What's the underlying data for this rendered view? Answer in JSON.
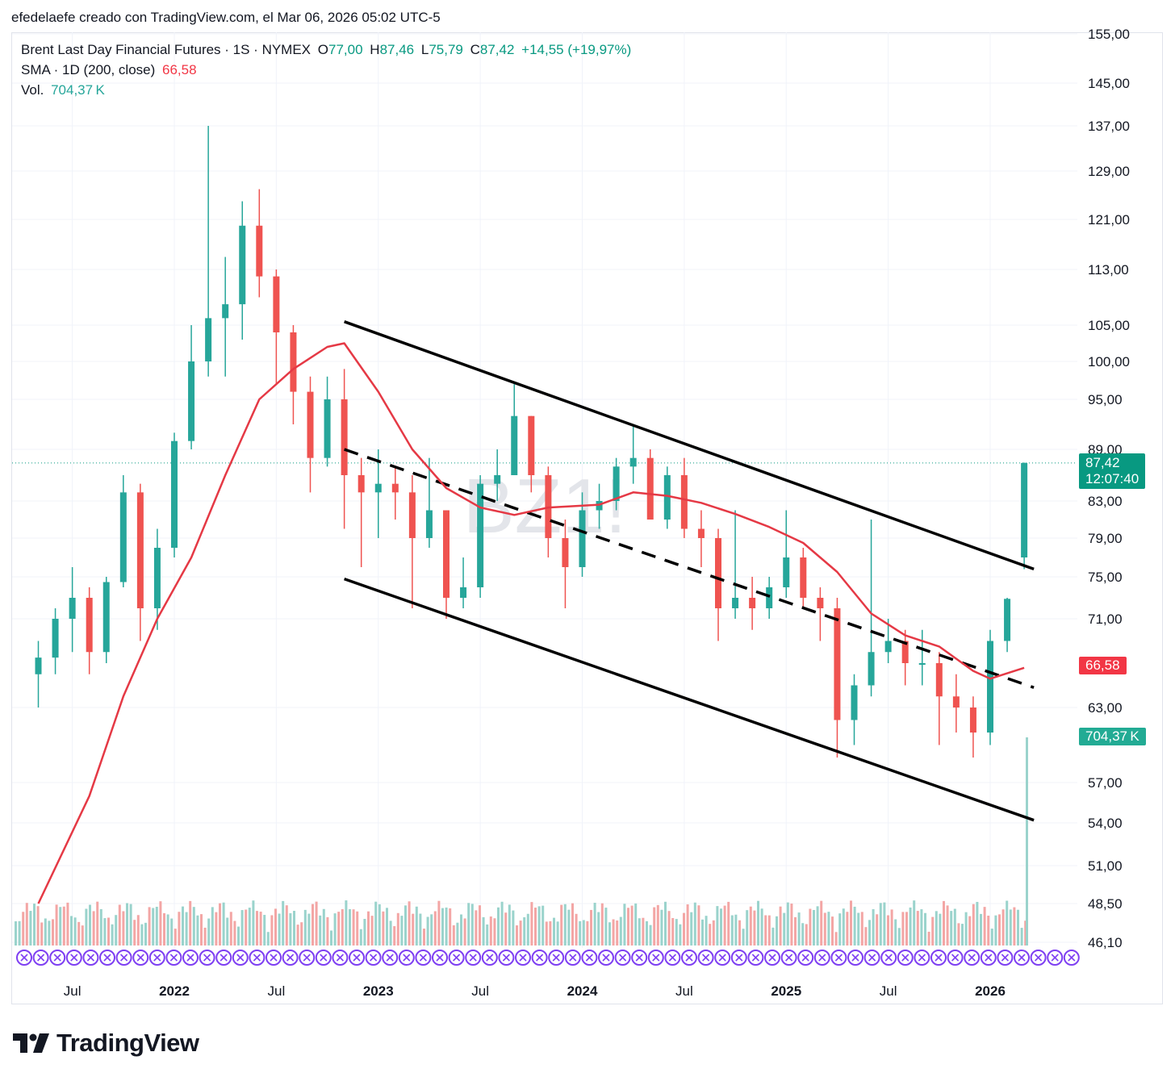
{
  "caption": "efedelaefe creado con TradingView.com, el Mar 06, 2026 05:02 UTC-5",
  "legend": {
    "symbol": "Brent Last Day Financial Futures · 1S · NYMEX",
    "o_label": "O",
    "o": "77,00",
    "h_label": "H",
    "h": "87,46",
    "l_label": "L",
    "l": "75,79",
    "c_label": "C",
    "c": "87,42",
    "change": "+14,55 (+19,97%)",
    "sma_label": "SMA · 1D (200, close)",
    "sma_value": "66,58",
    "vol_label": "Vol.",
    "vol_value": "704,37 K"
  },
  "watermark": "BZ1!",
  "badges": {
    "price": "87,42",
    "countdown": "12:07:40",
    "sma": "66,58",
    "volume": "704,37 K"
  },
  "brand": {
    "name": "TradingView",
    "icon": "tradingview-logo-icon"
  },
  "colors": {
    "up": "#26a69a",
    "down": "#ef5350",
    "sma": "#e53945",
    "grid": "#f0f3fa",
    "line": "#000000",
    "event": "#7e3ff2"
  },
  "chart_data": {
    "type": "candlestick",
    "title": "Brent Last Day Financial Futures · 1S · NYMEX",
    "y_scale": "log",
    "y_ticks": [
      "155,00",
      "145,00",
      "137,00",
      "129,00",
      "121,00",
      "113,00",
      "105,00",
      "100,00",
      "95,00",
      "89,00",
      "83,00",
      "79,00",
      "75,00",
      "71,00",
      "63,00",
      "57,00",
      "54,00",
      "51,00",
      "48,50",
      "46,10"
    ],
    "x_ticks": [
      "Jul",
      "2022",
      "Jul",
      "2023",
      "Jul",
      "2024",
      "Jul",
      "2025",
      "Jul",
      "2026"
    ],
    "x_range": [
      "2021-05",
      "2026-08"
    ],
    "last_price": 87.42,
    "series": [
      {
        "name": "SMA · 1D (200, close)",
        "kind": "line",
        "points": [
          [
            "2021-05",
            48.5
          ],
          [
            "2021-08",
            56
          ],
          [
            "2021-10",
            64
          ],
          [
            "2021-12",
            71
          ],
          [
            "2022-02",
            77
          ],
          [
            "2022-04",
            86
          ],
          [
            "2022-06",
            95
          ],
          [
            "2022-08",
            99
          ],
          [
            "2022-10",
            102
          ],
          [
            "2022-11",
            102.5
          ],
          [
            "2023-01",
            96
          ],
          [
            "2023-03",
            89
          ],
          [
            "2023-05",
            84.5
          ],
          [
            "2023-07",
            82.3
          ],
          [
            "2023-09",
            81.5
          ],
          [
            "2023-11",
            82.3
          ],
          [
            "2024-02",
            82.6
          ],
          [
            "2024-04",
            84
          ],
          [
            "2024-06",
            83.6
          ],
          [
            "2024-08",
            82.8
          ],
          [
            "2024-10",
            81.6
          ],
          [
            "2024-12",
            80.2
          ],
          [
            "2025-02",
            78.5
          ],
          [
            "2025-04",
            75.5
          ],
          [
            "2025-06",
            71.5
          ],
          [
            "2025-08",
            69.5
          ],
          [
            "2025-10",
            68.5
          ],
          [
            "2025-12",
            66.3
          ],
          [
            "2026-01",
            65.6
          ],
          [
            "2026-03",
            66.58
          ]
        ]
      },
      {
        "name": "Vol.",
        "kind": "volume",
        "last": 704370
      }
    ],
    "trend_lines": [
      {
        "style": "solid",
        "from": [
          "2022-11",
          105.5
        ],
        "to": [
          "2026-03",
          75.8
        ]
      },
      {
        "style": "dashed",
        "from": [
          "2022-11",
          89
        ],
        "to": [
          "2026-03",
          64.8
        ]
      },
      {
        "style": "solid",
        "from": [
          "2022-11",
          74.8
        ],
        "to": [
          "2026-03",
          54.2
        ]
      }
    ],
    "candles": [
      [
        "2021-05",
        66,
        69,
        63,
        67.5
      ],
      [
        "2021-06",
        67.5,
        72,
        66,
        71
      ],
      [
        "2021-07",
        71,
        76,
        68,
        73
      ],
      [
        "2021-08",
        73,
        74,
        66,
        68
      ],
      [
        "2021-09",
        68,
        75,
        67,
        74.5
      ],
      [
        "2021-10",
        74.5,
        86,
        74,
        84
      ],
      [
        "2021-11",
        84,
        85,
        69,
        72
      ],
      [
        "2021-12",
        72,
        80,
        70,
        78
      ],
      [
        "2022-01",
        78,
        91,
        77,
        90
      ],
      [
        "2022-02",
        90,
        105,
        89,
        100
      ],
      [
        "2022-03",
        100,
        137,
        98,
        106
      ],
      [
        "2022-04",
        106,
        115,
        98,
        108
      ],
      [
        "2022-05",
        108,
        124,
        103,
        120
      ],
      [
        "2022-06",
        120,
        126,
        109,
        112
      ],
      [
        "2022-07",
        112,
        113,
        97,
        104
      ],
      [
        "2022-08",
        104,
        105,
        92,
        96
      ],
      [
        "2022-09",
        96,
        98,
        84,
        88
      ],
      [
        "2022-10",
        88,
        98,
        87,
        95
      ],
      [
        "2022-11",
        95,
        99,
        80,
        86
      ],
      [
        "2022-12",
        86,
        88,
        76,
        84
      ],
      [
        "2023-01",
        84,
        89,
        79,
        85
      ],
      [
        "2023-02",
        85,
        87,
        81,
        84
      ],
      [
        "2023-03",
        84,
        86,
        72,
        79
      ],
      [
        "2023-04",
        79,
        88,
        78,
        82
      ],
      [
        "2023-05",
        82,
        82,
        71,
        73
      ],
      [
        "2023-06",
        73,
        77,
        72,
        74
      ],
      [
        "2023-07",
        74,
        86,
        73,
        85
      ],
      [
        "2023-08",
        85,
        89,
        83,
        86
      ],
      [
        "2023-09",
        86,
        97,
        86,
        93
      ],
      [
        "2023-10",
        93,
        93,
        84,
        86
      ],
      [
        "2023-11",
        86,
        87,
        77,
        79
      ],
      [
        "2023-12",
        79,
        81,
        72,
        76
      ],
      [
        "2024-01",
        76,
        84,
        75,
        82
      ],
      [
        "2024-02",
        82,
        85,
        80,
        83
      ],
      [
        "2024-03",
        83,
        88,
        82,
        87
      ],
      [
        "2024-04",
        87,
        92,
        85,
        88
      ],
      [
        "2024-05",
        88,
        89,
        81,
        81
      ],
      [
        "2024-06",
        81,
        87,
        80,
        86
      ],
      [
        "2024-07",
        86,
        88,
        79,
        80
      ],
      [
        "2024-08",
        80,
        82,
        76,
        79
      ],
      [
        "2024-09",
        79,
        80,
        69,
        72
      ],
      [
        "2024-10",
        72,
        82,
        71,
        73
      ],
      [
        "2024-11",
        73,
        75,
        70,
        72
      ],
      [
        "2024-12",
        72,
        75,
        71,
        74
      ],
      [
        "2025-01",
        74,
        82,
        73,
        77
      ],
      [
        "2025-02",
        77,
        78,
        72,
        73
      ],
      [
        "2025-03",
        73,
        74,
        69,
        72
      ],
      [
        "2025-04",
        72,
        73,
        59,
        62
      ],
      [
        "2025-05",
        62,
        66,
        60,
        65
      ],
      [
        "2025-06",
        65,
        81,
        64,
        68
      ],
      [
        "2025-07",
        68,
        71,
        67,
        69
      ],
      [
        "2025-08",
        69,
        70,
        65,
        67
      ],
      [
        "2025-09",
        67,
        70,
        65,
        67
      ],
      [
        "2025-10",
        67,
        68,
        60,
        64
      ],
      [
        "2025-11",
        64,
        66,
        61,
        63
      ],
      [
        "2025-12",
        63,
        64,
        59,
        61
      ],
      [
        "2026-01",
        61,
        70,
        60,
        69
      ],
      [
        "2026-02",
        69,
        73,
        68,
        72.9
      ],
      [
        "2026-03",
        77,
        87.46,
        75.79,
        87.42
      ]
    ]
  }
}
